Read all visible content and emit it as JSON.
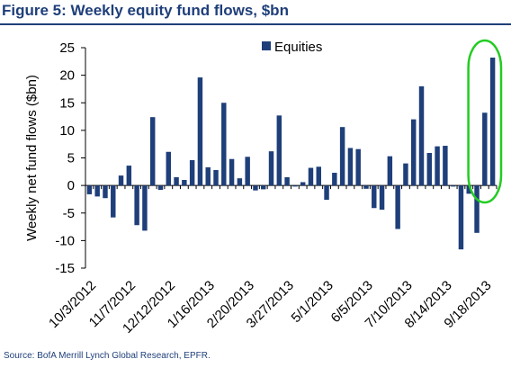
{
  "figure": {
    "title": "Figure 5: Weekly equity fund flows, $bn",
    "source": "Source: BofA Merrill Lynch Global Research, EPFR."
  },
  "colors": {
    "bar": "#1f3f7a",
    "title": "#1f3f7a",
    "highlight": "#22cc22"
  },
  "chart_data": {
    "type": "bar",
    "title": "",
    "xlabel": "",
    "ylabel": "Weekly net fund flows ($bn)",
    "ylim": [
      -15,
      25
    ],
    "yticks": [
      25,
      20,
      15,
      10,
      5,
      0,
      -5,
      -10,
      -15
    ],
    "grid": false,
    "legend": "top-center",
    "series": [
      {
        "name": "Equities",
        "values": [
          -1.6,
          -2.0,
          -2.3,
          -5.8,
          1.8,
          3.6,
          -7.2,
          -8.2,
          12.4,
          -0.8,
          6.1,
          1.5,
          1.0,
          4.6,
          19.6,
          3.3,
          2.8,
          15.0,
          4.8,
          1.3,
          5.2,
          -0.9,
          -0.7,
          6.2,
          12.7,
          1.5,
          -0.2,
          0.6,
          3.2,
          3.4,
          -2.6,
          2.3,
          10.6,
          6.8,
          6.6,
          -0.6,
          -4.1,
          -4.4,
          5.3,
          -7.9,
          4.0,
          12.0,
          18.0,
          5.9,
          7.1,
          7.2,
          -0.2,
          -11.6,
          -1.5,
          -8.6,
          13.2,
          23.2
        ]
      }
    ],
    "xtick_labels": [
      "10/3/2012",
      "11/7/2012",
      "12/12/2012",
      "1/16/2013",
      "2/20/2013",
      "3/27/2013",
      "5/1/2013",
      "6/5/2013",
      "7/10/2013",
      "8/14/2013",
      "9/18/2013"
    ],
    "xtick_every": 5,
    "highlight": {
      "description": "green ellipse around last weeks",
      "from_index": 49,
      "to_index": 51
    }
  }
}
